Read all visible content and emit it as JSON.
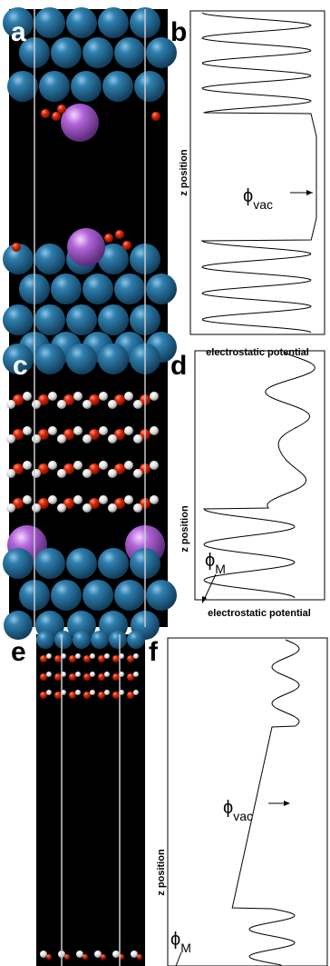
{
  "panels": [
    {
      "label": "a"
    },
    {
      "label": "b",
      "y_axis_label": "z position",
      "x_axis_label": "electrostatic potential",
      "annotations": [
        {
          "symbol": "ϕ",
          "subscript": "vac"
        }
      ]
    },
    {
      "label": "c"
    },
    {
      "label": "d",
      "y_axis_label": "z position",
      "x_axis_label": "electrostatic potential",
      "annotations": [
        {
          "symbol": "ϕ",
          "subscript": "M"
        }
      ]
    },
    {
      "label": "e"
    },
    {
      "label": "f",
      "y_axis_label": "z position",
      "annotations": [
        {
          "symbol": "ϕ",
          "subscript": "vac"
        },
        {
          "symbol": "ϕ",
          "subscript": "M"
        }
      ]
    }
  ]
}
